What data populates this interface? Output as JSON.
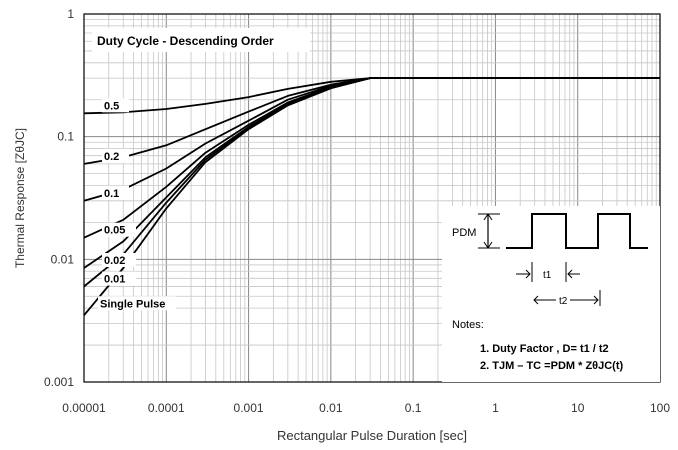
{
  "chart_data": {
    "type": "line",
    "title": "",
    "xlabel": "Rectangular Pulse Duration [sec]",
    "ylabel": "Thermal Response  [ZθJC]",
    "x_scale": "log",
    "y_scale": "log",
    "xlim": [
      1e-05,
      100
    ],
    "ylim": [
      0.001,
      1
    ],
    "grid": true,
    "x_ticks": [
      "0.00001",
      "0.0001",
      "0.001",
      "0.01",
      "0.1",
      "1",
      "10",
      "100"
    ],
    "y_ticks": [
      "0.001",
      "0.01",
      "0.1",
      "1"
    ],
    "legend_title": "Duty Cycle - Descending Order",
    "series": [
      {
        "name": "0.5",
        "x": [
          1e-05,
          3e-05,
          0.0001,
          0.0003,
          0.001,
          0.003,
          0.01,
          0.03,
          0.1,
          1,
          10,
          100
        ],
        "y": [
          0.155,
          0.158,
          0.168,
          0.185,
          0.21,
          0.245,
          0.28,
          0.3,
          0.3,
          0.3,
          0.3,
          0.3
        ]
      },
      {
        "name": "0.2",
        "x": [
          1e-05,
          3e-05,
          0.0001,
          0.0003,
          0.001,
          0.003,
          0.01,
          0.03,
          0.1,
          1,
          10,
          100
        ],
        "y": [
          0.06,
          0.068,
          0.085,
          0.115,
          0.16,
          0.215,
          0.265,
          0.3,
          0.3,
          0.3,
          0.3,
          0.3
        ]
      },
      {
        "name": "0.1",
        "x": [
          1e-05,
          3e-05,
          0.0001,
          0.0003,
          0.001,
          0.003,
          0.01,
          0.03,
          0.1,
          1,
          10,
          100
        ],
        "y": [
          0.03,
          0.037,
          0.055,
          0.088,
          0.135,
          0.2,
          0.26,
          0.3,
          0.3,
          0.3,
          0.3,
          0.3
        ]
      },
      {
        "name": "0.05",
        "x": [
          1e-05,
          3e-05,
          0.0001,
          0.0003,
          0.001,
          0.003,
          0.01,
          0.03,
          0.1,
          1,
          10,
          100
        ],
        "y": [
          0.015,
          0.021,
          0.039,
          0.074,
          0.125,
          0.19,
          0.255,
          0.3,
          0.3,
          0.3,
          0.3,
          0.3
        ]
      },
      {
        "name": "0.02",
        "x": [
          1e-05,
          3e-05,
          0.0001,
          0.0003,
          0.001,
          0.003,
          0.01,
          0.03,
          0.1,
          1,
          10,
          100
        ],
        "y": [
          0.0085,
          0.014,
          0.032,
          0.068,
          0.12,
          0.185,
          0.25,
          0.3,
          0.3,
          0.3,
          0.3,
          0.3
        ]
      },
      {
        "name": "0.01",
        "x": [
          1e-05,
          3e-05,
          0.0001,
          0.0003,
          0.001,
          0.003,
          0.01,
          0.03,
          0.1,
          1,
          10,
          100
        ],
        "y": [
          0.006,
          0.011,
          0.029,
          0.065,
          0.118,
          0.183,
          0.25,
          0.3,
          0.3,
          0.3,
          0.3,
          0.3
        ]
      },
      {
        "name": "Single Pulse",
        "x": [
          1e-05,
          3e-05,
          0.0001,
          0.0003,
          0.001,
          0.003,
          0.01,
          0.03,
          0.1,
          1,
          10,
          100
        ],
        "y": [
          0.0035,
          0.0085,
          0.026,
          0.062,
          0.115,
          0.18,
          0.248,
          0.3,
          0.3,
          0.3,
          0.3,
          0.3
        ]
      }
    ],
    "inset": {
      "pdm_label": "PDM",
      "t1_label": "t1",
      "t2_label": "t2",
      "notes_title": "Notes:",
      "note1": "1. Duty Factor ,   D= t1 / t2",
      "note2": "2. TJM – TC  =PDM * ZθJC(t)"
    }
  }
}
